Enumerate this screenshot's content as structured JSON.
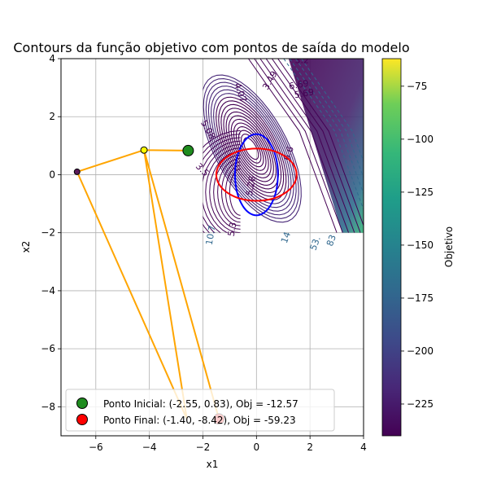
{
  "chart_data": {
    "type": "line",
    "title": "Contours da função objetivo com pontos de saída do modelo",
    "xlabel": "x1",
    "ylabel": "x2",
    "xlim": [
      -7.3,
      4
    ],
    "ylim": [
      -9,
      4
    ],
    "xticks": [
      -6,
      -4,
      -2,
      0,
      2,
      4
    ],
    "xtick_labels": [
      "−6",
      "−4",
      "−2",
      "0",
      "2",
      "4"
    ],
    "yticks": [
      -8,
      -6,
      -4,
      -2,
      0,
      2,
      4
    ],
    "ytick_labels": [
      "−8",
      "−6",
      "−4",
      "−2",
      "0",
      "2",
      "4"
    ],
    "grid": true,
    "contour_region": {
      "x": [
        -2,
        4
      ],
      "y": [
        -2,
        4
      ]
    },
    "contour_labels": [
      {
        "text": "5.28",
        "x": -0.1,
        "y": -0.4,
        "rot": -80
      },
      {
        "text": "6.69",
        "x": 1.6,
        "y": 3.0,
        "rot": -10
      },
      {
        "text": "5.69",
        "x": 1.8,
        "y": 2.7,
        "rot": -10
      },
      {
        "text": "3.2",
        "x": 1.7,
        "y": 3.85,
        "rot": 0
      },
      {
        "text": "3.49",
        "x": 0.6,
        "y": 3.2,
        "rot": -60
      },
      {
        "text": "14",
        "x": 1.2,
        "y": -2.2,
        "rot": -70
      },
      {
        "text": "53.",
        "x": 2.3,
        "y": -2.4,
        "rot": -70
      },
      {
        "text": "83",
        "x": 2.9,
        "y": -2.3,
        "rot": -70
      },
      {
        "text": "5.3",
        "x": -0.8,
        "y": -1.9,
        "rot": -80
      },
      {
        "text": "10.7",
        "x": -1.6,
        "y": -2.1,
        "rot": -80
      },
      {
        "text": "3.5",
        "x": -2.1,
        "y": 0.1,
        "rot": 45
      },
      {
        "text": "5.08",
        "x": -1.9,
        "y": 1.5,
        "rot": 60
      },
      {
        "text": "4.07",
        "x": -0.7,
        "y": 2.8,
        "rot": 70
      },
      {
        "text": "6.6",
        "x": 1.3,
        "y": 0.7,
        "rot": -70
      }
    ],
    "ellipses": [
      {
        "name": "blue",
        "color": "#0000ff",
        "cx": 0,
        "cy": 0,
        "rx": 0.8,
        "ry": 1.4
      },
      {
        "name": "red",
        "color": "#ff0000",
        "cx": 0,
        "cy": 0,
        "rx": 1.5,
        "ry": 0.9
      }
    ],
    "path": {
      "color": "#ffa500",
      "points": [
        {
          "x": -2.55,
          "y": 0.83
        },
        {
          "x": -4.2,
          "y": 0.85
        },
        {
          "x": -6.7,
          "y": 0.1
        },
        {
          "x": -2.6,
          "y": -8.42
        },
        {
          "x": -4.2,
          "y": 0.85
        },
        {
          "x": -1.4,
          "y": -8.42
        }
      ],
      "markers": [
        {
          "x": -4.2,
          "y": 0.85,
          "color": "#ffff00",
          "r": 4
        },
        {
          "x": -6.7,
          "y": 0.1,
          "color": "#5a1a5a",
          "r": 3.5
        }
      ]
    },
    "start_point": {
      "x": -2.55,
      "y": 0.83,
      "color": "#1f8c1f"
    },
    "end_point": {
      "x": -1.4,
      "y": -8.42,
      "color": "#ff0000"
    },
    "legend": {
      "placement": "lower left",
      "entries": [
        {
          "label": "Ponto Inicial: (-2.55, 0.83), Obj = -12.57",
          "color": "#1f8c1f"
        },
        {
          "label": "Ponto Final: (-1.40, -8.42), Obj = -59.23",
          "color": "#ff0000"
        }
      ]
    },
    "colorbar": {
      "label": "Objetivo",
      "colormap": "viridis",
      "range": [
        -240,
        -62
      ],
      "ticks": [
        -75,
        -100,
        -125,
        -150,
        -175,
        -200,
        -225
      ],
      "tick_labels": [
        "−75",
        "−100",
        "−125",
        "−150",
        "−175",
        "−200",
        "−225"
      ]
    }
  }
}
